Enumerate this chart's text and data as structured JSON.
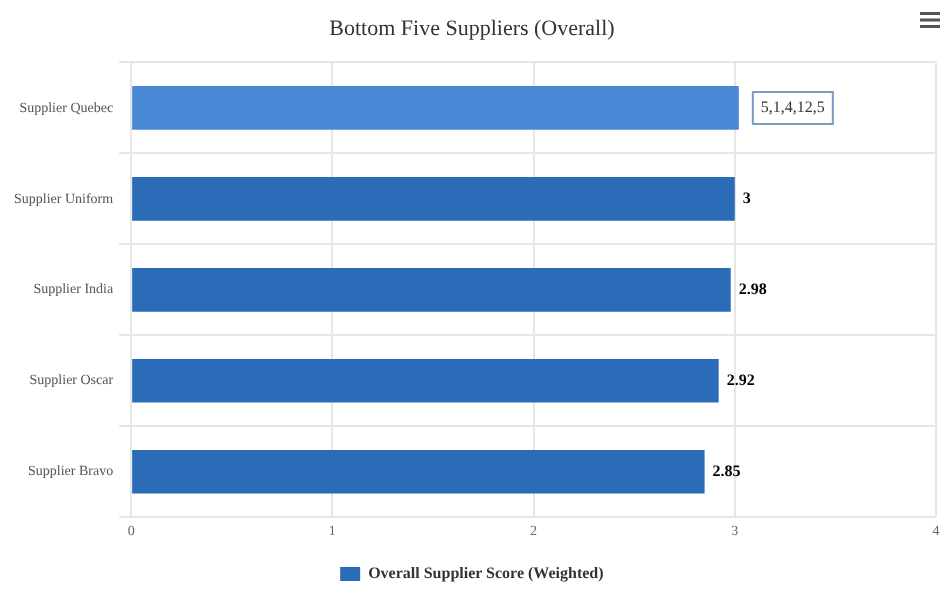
{
  "chart_data": {
    "type": "bar",
    "orientation": "horizontal",
    "title": "Bottom Five Suppliers (Overall)",
    "categories": [
      "Supplier Quebec",
      "Supplier Uniform",
      "Supplier India",
      "Supplier Oscar",
      "Supplier Bravo"
    ],
    "series": [
      {
        "name": "Overall Supplier Score (Weighted)",
        "color": "#2b6cb8",
        "colors": [
          "#4a88d6",
          "#2b6cb8",
          "#2b6cb8",
          "#2b6cb8",
          "#2b6cb8"
        ],
        "values": [
          3.02,
          3,
          2.98,
          2.92,
          2.85
        ],
        "value_labels": [
          "5,1,4,12,5",
          "3",
          "2.98",
          "2.92",
          "2.85"
        ]
      }
    ],
    "xlim": [
      0,
      4
    ],
    "xticks": [
      0,
      1,
      2,
      3,
      4
    ],
    "grid": true,
    "legend": "bottom"
  }
}
